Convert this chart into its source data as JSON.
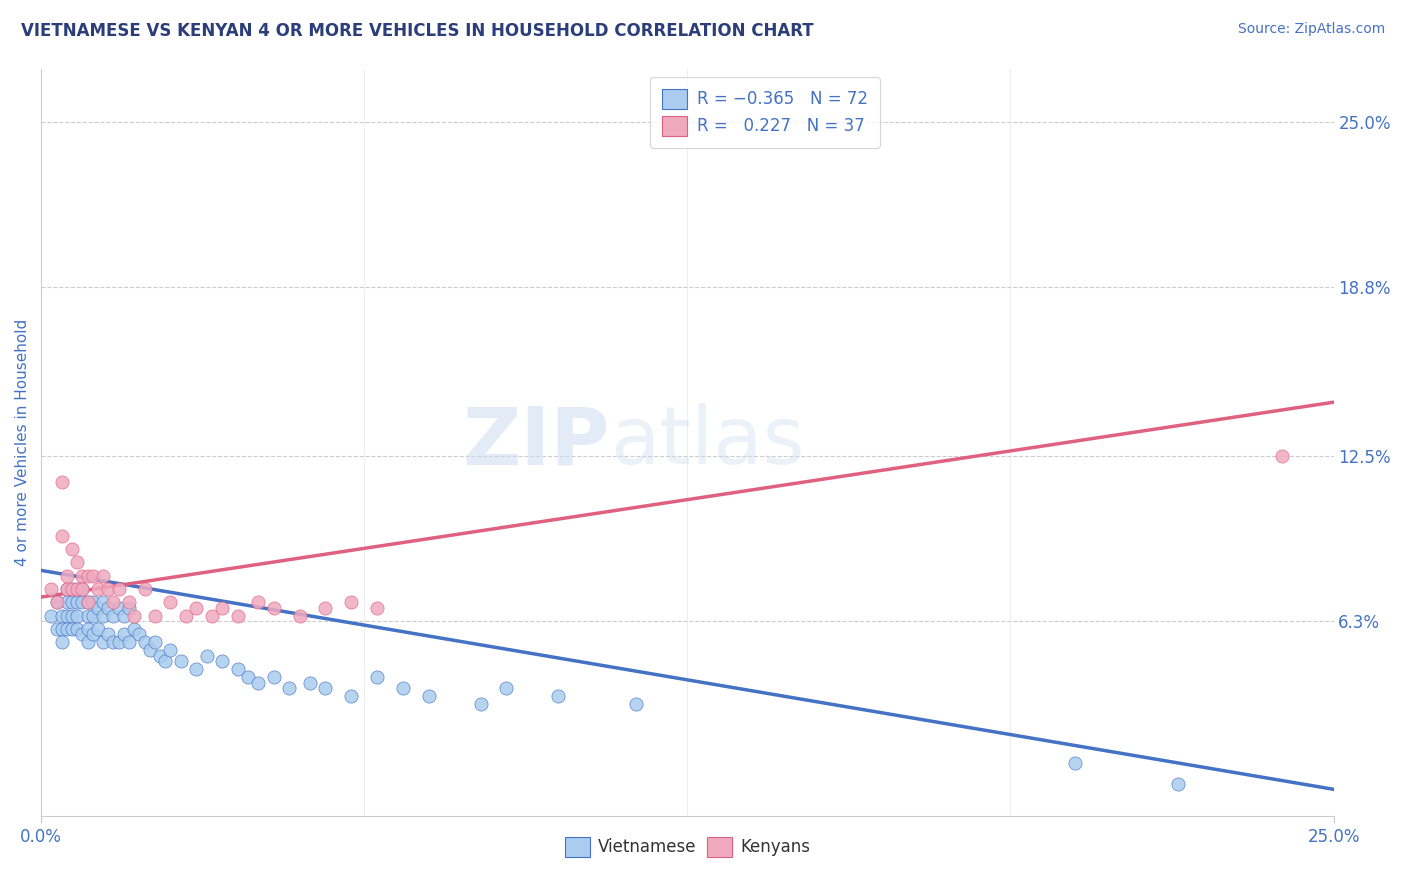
{
  "title": "VIETNAMESE VS KENYAN 4 OR MORE VEHICLES IN HOUSEHOLD CORRELATION CHART",
  "source": "Source: ZipAtlas.com",
  "ylabel": "4 or more Vehicles in Household",
  "xlim": [
    0.0,
    0.25
  ],
  "ylim": [
    -0.01,
    0.27
  ],
  "ytick_values": [
    0.063,
    0.125,
    0.188,
    0.25
  ],
  "ytick_labels": [
    "6.3%",
    "12.5%",
    "18.8%",
    "25.0%"
  ],
  "watermark_zip": "ZIP",
  "watermark_atlas": "atlas",
  "color_vietnamese": "#aaccee",
  "color_kenyan": "#f0aac0",
  "color_line_vietnamese": "#4472c4",
  "color_line_kenyan": "#e06080",
  "color_title": "#2c3e7a",
  "color_source": "#4472c4",
  "color_axis_labels": "#4472c4",
  "background_color": "#ffffff",
  "grid_color": "#cccccc",
  "viet_trend_x0": 0.0,
  "viet_trend_y0": 0.082,
  "viet_trend_x1": 0.25,
  "viet_trend_y1": 0.0,
  "ken_trend_x0": 0.0,
  "ken_trend_y0": 0.072,
  "ken_trend_x1": 0.25,
  "ken_trend_y1": 0.145,
  "vietnamese_x": [
    0.002,
    0.003,
    0.003,
    0.004,
    0.004,
    0.004,
    0.005,
    0.005,
    0.005,
    0.005,
    0.006,
    0.006,
    0.006,
    0.006,
    0.007,
    0.007,
    0.007,
    0.007,
    0.008,
    0.008,
    0.008,
    0.009,
    0.009,
    0.009,
    0.009,
    0.01,
    0.01,
    0.01,
    0.011,
    0.011,
    0.012,
    0.012,
    0.012,
    0.013,
    0.013,
    0.014,
    0.014,
    0.015,
    0.015,
    0.016,
    0.016,
    0.017,
    0.017,
    0.018,
    0.019,
    0.02,
    0.021,
    0.022,
    0.023,
    0.024,
    0.025,
    0.027,
    0.03,
    0.032,
    0.035,
    0.038,
    0.04,
    0.042,
    0.045,
    0.048,
    0.052,
    0.055,
    0.06,
    0.065,
    0.07,
    0.075,
    0.085,
    0.09,
    0.1,
    0.115,
    0.2,
    0.22
  ],
  "vietnamese_y": [
    0.065,
    0.07,
    0.06,
    0.065,
    0.06,
    0.055,
    0.075,
    0.07,
    0.065,
    0.06,
    0.075,
    0.07,
    0.065,
    0.06,
    0.075,
    0.07,
    0.065,
    0.06,
    0.075,
    0.07,
    0.058,
    0.07,
    0.065,
    0.06,
    0.055,
    0.07,
    0.065,
    0.058,
    0.068,
    0.06,
    0.07,
    0.065,
    0.055,
    0.068,
    0.058,
    0.065,
    0.055,
    0.068,
    0.055,
    0.065,
    0.058,
    0.068,
    0.055,
    0.06,
    0.058,
    0.055,
    0.052,
    0.055,
    0.05,
    0.048,
    0.052,
    0.048,
    0.045,
    0.05,
    0.048,
    0.045,
    0.042,
    0.04,
    0.042,
    0.038,
    0.04,
    0.038,
    0.035,
    0.042,
    0.038,
    0.035,
    0.032,
    0.038,
    0.035,
    0.032,
    0.01,
    0.002
  ],
  "kenyan_x": [
    0.002,
    0.003,
    0.004,
    0.004,
    0.005,
    0.005,
    0.006,
    0.006,
    0.007,
    0.007,
    0.008,
    0.008,
    0.009,
    0.009,
    0.01,
    0.011,
    0.012,
    0.013,
    0.014,
    0.015,
    0.017,
    0.018,
    0.02,
    0.022,
    0.025,
    0.028,
    0.03,
    0.033,
    0.035,
    0.038,
    0.042,
    0.045,
    0.05,
    0.055,
    0.06,
    0.065,
    0.24
  ],
  "kenyan_y": [
    0.075,
    0.07,
    0.115,
    0.095,
    0.08,
    0.075,
    0.09,
    0.075,
    0.085,
    0.075,
    0.08,
    0.075,
    0.08,
    0.07,
    0.08,
    0.075,
    0.08,
    0.075,
    0.07,
    0.075,
    0.07,
    0.065,
    0.075,
    0.065,
    0.07,
    0.065,
    0.068,
    0.065,
    0.068,
    0.065,
    0.07,
    0.068,
    0.065,
    0.068,
    0.07,
    0.068,
    0.125
  ]
}
